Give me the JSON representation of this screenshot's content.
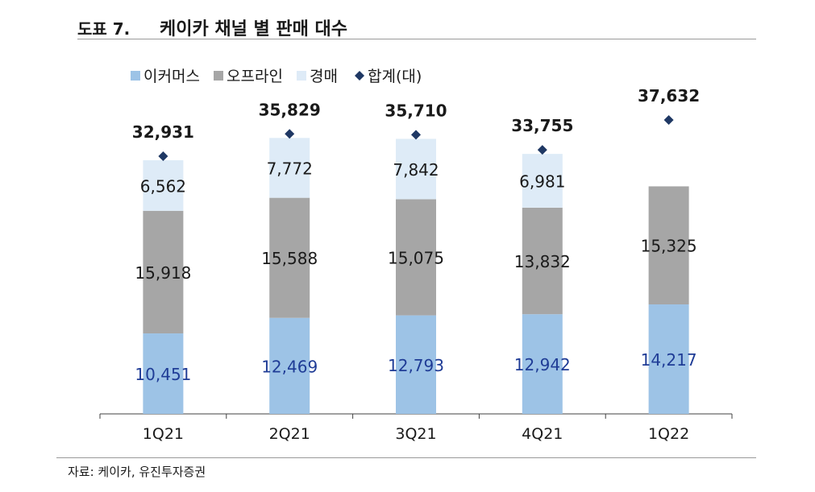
{
  "header": {
    "figure_label": "도표 7.",
    "title": "케이카 채널 별 판매 대수"
  },
  "footer": {
    "source": "자료: 케이카, 유진투자증권"
  },
  "colors": {
    "ecommerce": "#9dc3e6",
    "offline": "#a6a6a6",
    "auction": "#deebf7",
    "total_marker": "#1f3864",
    "ecommerce_label": "#1f3c96",
    "axis": "#404040"
  },
  "chart_data": {
    "type": "bar",
    "stacked": true,
    "categories": [
      "1Q21",
      "2Q21",
      "3Q21",
      "4Q21",
      "1Q22"
    ],
    "series": [
      {
        "name": "이커머스",
        "values": [
          10451,
          12469,
          12793,
          12942,
          14217
        ]
      },
      {
        "name": "오프라인",
        "values": [
          15918,
          15588,
          15075,
          13832,
          15325
        ]
      },
      {
        "name": "경매",
        "values": [
          6562,
          7772,
          7842,
          6981,
          null
        ]
      }
    ],
    "total": {
      "name": "합계(대)",
      "values": [
        32931,
        35829,
        35710,
        33755,
        37632
      ]
    },
    "value_labels": {
      "이커머스": [
        "10,451",
        "12,469",
        "12,793",
        "12,942",
        "14,217"
      ],
      "오프라인": [
        "15,918",
        "15,588",
        "15,075",
        "13,832",
        "15,325"
      ],
      "경매": [
        "6,562",
        "7,772",
        "7,842",
        "6,981",
        ""
      ],
      "합계(대)": [
        "32,931",
        "35,829",
        "35,710",
        "33,755",
        "37,632"
      ]
    },
    "ylim": [
      0,
      40000
    ],
    "legend_position": "top-left",
    "grid": false
  }
}
